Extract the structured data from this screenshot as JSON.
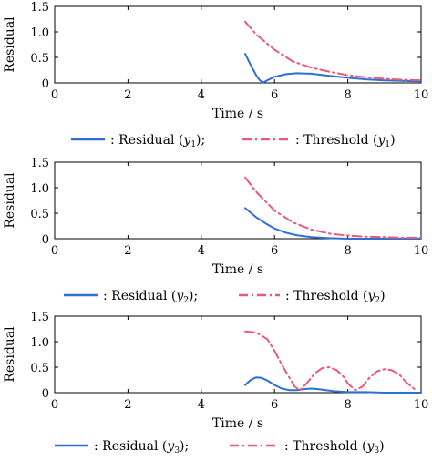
{
  "chart_data": [
    {
      "type": "line",
      "xlabel": "Time / s",
      "ylabel": "Residual",
      "xlim": [
        0,
        10
      ],
      "ylim": [
        0,
        1.5
      ],
      "xticks": [
        "0",
        "2",
        "4",
        "6",
        "8",
        "10"
      ],
      "yticks": [
        "0",
        "0.5",
        "1.0",
        "1.5"
      ],
      "grid": false,
      "legend_position": "below",
      "series": [
        {
          "name": "Residual (y1)",
          "legend_label": "Residual",
          "legend_var": "y",
          "legend_sub": "1",
          "legend_suffix": ";",
          "style": "solid",
          "color": "#2f6fd1",
          "x": [
            5.2,
            5.35,
            5.5,
            5.6,
            5.7,
            5.8,
            6.0,
            6.3,
            6.6,
            7.0,
            7.5,
            8.0,
            8.5,
            9.0,
            9.5,
            10.0
          ],
          "y": [
            0.57,
            0.35,
            0.15,
            0.05,
            0.01,
            0.05,
            0.12,
            0.17,
            0.19,
            0.18,
            0.14,
            0.1,
            0.07,
            0.05,
            0.04,
            0.03
          ]
        },
        {
          "name": "Threshold (y1)",
          "legend_label": "Threshold",
          "legend_var": "y",
          "legend_sub": "1",
          "legend_suffix": "",
          "style": "dashdot",
          "color": "#e85a7d",
          "x": [
            5.2,
            5.5,
            6.0,
            6.5,
            7.0,
            7.5,
            8.0,
            8.5,
            9.0,
            9.5,
            10.0
          ],
          "y": [
            1.2,
            0.95,
            0.65,
            0.42,
            0.3,
            0.22,
            0.15,
            0.11,
            0.08,
            0.06,
            0.05
          ]
        }
      ]
    },
    {
      "type": "line",
      "xlabel": "Time / s",
      "ylabel": "Residual",
      "xlim": [
        0,
        10
      ],
      "ylim": [
        0,
        1.5
      ],
      "xticks": [
        "0",
        "2",
        "4",
        "6",
        "8",
        "10"
      ],
      "yticks": [
        "0",
        "0.5",
        "1.0",
        "1.5"
      ],
      "grid": false,
      "legend_position": "below",
      "series": [
        {
          "name": "Residual (y2)",
          "legend_label": "Residual",
          "legend_var": "y",
          "legend_sub": "2",
          "legend_suffix": ";",
          "style": "solid",
          "color": "#2f6fd1",
          "x": [
            5.2,
            5.5,
            5.8,
            6.0,
            6.3,
            6.6,
            7.0,
            7.5,
            8.0,
            8.5,
            9.0,
            10.0
          ],
          "y": [
            0.6,
            0.42,
            0.28,
            0.2,
            0.12,
            0.07,
            0.03,
            0.01,
            0.0,
            0.0,
            0.0,
            0.0
          ]
        },
        {
          "name": "Threshold (y2)",
          "legend_label": "Threshold",
          "legend_var": "y",
          "legend_sub": "2",
          "legend_suffix": "",
          "style": "dashdot",
          "color": "#e85a7d",
          "x": [
            5.2,
            5.5,
            6.0,
            6.5,
            7.0,
            7.5,
            8.0,
            8.5,
            9.0,
            9.5,
            10.0
          ],
          "y": [
            1.2,
            0.92,
            0.55,
            0.32,
            0.18,
            0.1,
            0.06,
            0.04,
            0.03,
            0.02,
            0.02
          ]
        }
      ]
    },
    {
      "type": "line",
      "xlabel": "Time / s",
      "ylabel": "Residual",
      "xlim": [
        0,
        10
      ],
      "ylim": [
        0,
        1.5
      ],
      "xticks": [
        "0",
        "2",
        "4",
        "6",
        "8",
        "10"
      ],
      "yticks": [
        "0",
        "0.5",
        "1.0",
        "1.5"
      ],
      "grid": false,
      "legend_position": "below",
      "series": [
        {
          "name": "Residual (y3)",
          "legend_label": "Residual",
          "legend_var": "y",
          "legend_sub": "3",
          "legend_suffix": ";",
          "style": "solid",
          "color": "#2f6fd1",
          "x": [
            5.2,
            5.35,
            5.5,
            5.65,
            5.8,
            6.0,
            6.2,
            6.4,
            6.6,
            6.8,
            7.0,
            7.2,
            7.4,
            7.6,
            7.8,
            8.0,
            8.5,
            9.0,
            9.5,
            10.0
          ],
          "y": [
            0.15,
            0.25,
            0.3,
            0.29,
            0.24,
            0.15,
            0.08,
            0.05,
            0.05,
            0.07,
            0.08,
            0.07,
            0.05,
            0.03,
            0.02,
            0.01,
            0.01,
            0.0,
            0.0,
            0.0
          ]
        },
        {
          "name": "Threshold (y3)",
          "legend_label": "Threshold",
          "legend_var": "y",
          "legend_sub": "3",
          "legend_suffix": "",
          "style": "dashdot",
          "color": "#e85a7d",
          "x": [
            5.2,
            5.5,
            5.8,
            6.0,
            6.2,
            6.4,
            6.55,
            6.7,
            6.9,
            7.1,
            7.3,
            7.5,
            7.7,
            7.9,
            8.0,
            8.2,
            8.4,
            8.6,
            8.8,
            9.0,
            9.2,
            9.4,
            9.6,
            9.8,
            9.9
          ],
          "y": [
            1.2,
            1.18,
            1.05,
            0.82,
            0.55,
            0.3,
            0.12,
            0.05,
            0.2,
            0.38,
            0.48,
            0.5,
            0.44,
            0.3,
            0.18,
            0.05,
            0.12,
            0.3,
            0.42,
            0.46,
            0.44,
            0.36,
            0.2,
            0.08,
            0.04
          ]
        }
      ]
    }
  ]
}
